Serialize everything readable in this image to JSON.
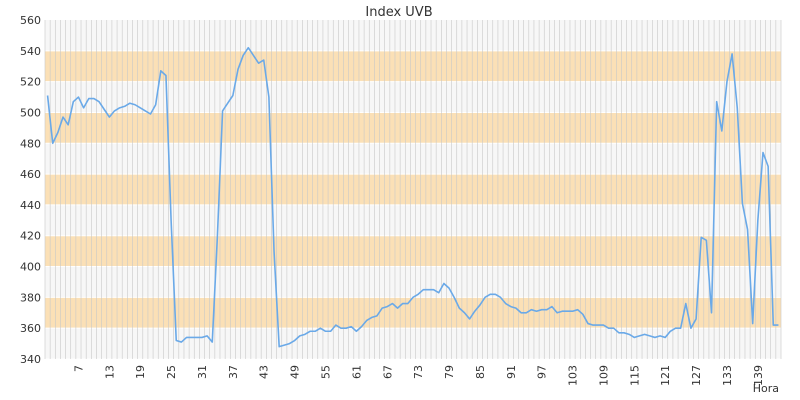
{
  "chart_data": {
    "type": "line",
    "title": "Index UVB",
    "xlabel": "Hora",
    "ylabel": "",
    "ylim": [
      340,
      560
    ],
    "yticks": [
      340,
      360,
      380,
      400,
      420,
      440,
      460,
      480,
      500,
      520,
      540,
      560
    ],
    "xlim": [
      1,
      143
    ],
    "xticks": [
      7,
      13,
      19,
      25,
      31,
      37,
      43,
      49,
      55,
      61,
      67,
      73,
      79,
      85,
      91,
      97,
      103,
      109,
      115,
      121,
      127,
      133,
      139
    ],
    "grid": true,
    "colors": {
      "line": "#6aa9e8",
      "band": "#fbe0b6",
      "vgrid": "#c8c8c8",
      "plot_bg": "#f4f4f4"
    },
    "series": [
      {
        "name": "",
        "x": [
          1,
          2,
          3,
          4,
          5,
          6,
          7,
          8,
          9,
          10,
          11,
          12,
          13,
          14,
          15,
          16,
          17,
          18,
          19,
          20,
          21,
          22,
          23,
          24,
          25,
          26,
          27,
          28,
          29,
          30,
          31,
          32,
          33,
          34,
          35,
          36,
          37,
          38,
          39,
          40,
          41,
          42,
          43,
          44,
          45,
          46,
          47,
          48,
          49,
          50,
          51,
          52,
          53,
          54,
          55,
          56,
          57,
          58,
          59,
          60,
          61,
          62,
          63,
          64,
          65,
          66,
          67,
          68,
          69,
          70,
          71,
          72,
          73,
          74,
          75,
          76,
          77,
          78,
          79,
          80,
          81,
          82,
          83,
          84,
          85,
          86,
          87,
          88,
          89,
          90,
          91,
          92,
          93,
          94,
          95,
          96,
          97,
          98,
          99,
          100,
          101,
          102,
          103,
          104,
          105,
          106,
          107,
          108,
          109,
          110,
          111,
          112,
          113,
          114,
          115,
          116,
          117,
          118,
          119,
          120,
          121,
          122,
          123,
          124,
          125,
          126,
          127,
          128,
          129,
          130,
          131,
          132,
          133,
          134,
          135,
          136,
          137,
          138,
          139,
          140,
          141,
          142,
          143
        ],
        "values": [
          511,
          480,
          487,
          497,
          492,
          507,
          510,
          503,
          509,
          509,
          507,
          502,
          497,
          501,
          503,
          504,
          506,
          505,
          503,
          501,
          499,
          505,
          527,
          524,
          430,
          352,
          351,
          354,
          354,
          354,
          354,
          355,
          351,
          420,
          501,
          506,
          511,
          528,
          537,
          542,
          537,
          532,
          534,
          510,
          410,
          348,
          349,
          350,
          352,
          355,
          356,
          358,
          358,
          360,
          358,
          358,
          362,
          360,
          360,
          361,
          358,
          361,
          365,
          367,
          368,
          373,
          374,
          376,
          373,
          376,
          376,
          380,
          382,
          385,
          385,
          385,
          383,
          389,
          386,
          380,
          373,
          370,
          366,
          371,
          375,
          380,
          382,
          382,
          380,
          376,
          374,
          373,
          370,
          370,
          372,
          371,
          372,
          372,
          374,
          370,
          371,
          371,
          371,
          372,
          369,
          363,
          362,
          362,
          362,
          360,
          360,
          357,
          357,
          356,
          354,
          355,
          356,
          355,
          354,
          355,
          354,
          358,
          360,
          360,
          376,
          360,
          366,
          419,
          417,
          370,
          507,
          488,
          520,
          538,
          503,
          441,
          424,
          363,
          430,
          474,
          465,
          362,
          362
        ]
      }
    ]
  }
}
